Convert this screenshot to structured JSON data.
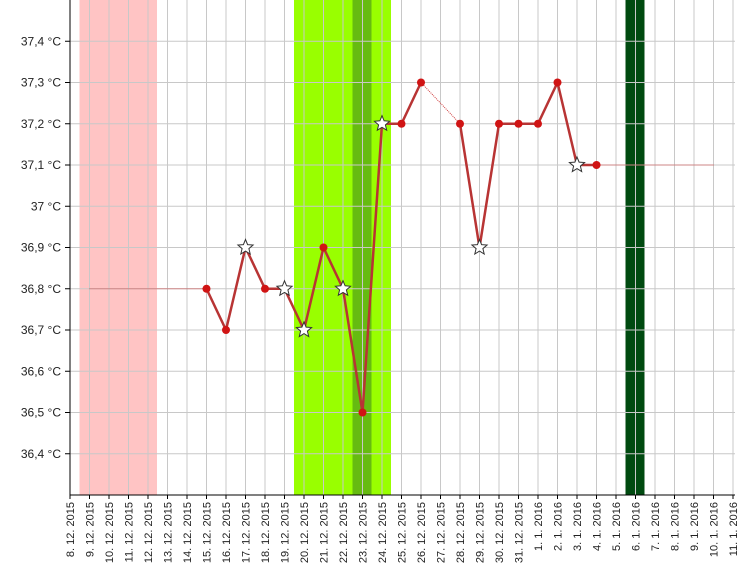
{
  "chart_data": {
    "type": "line",
    "categories": [
      "8. 12. 2015",
      "9. 12. 2015",
      "10. 12. 2015",
      "11. 12. 2015",
      "12. 12. 2015",
      "13. 12. 2015",
      "14. 12. 2015",
      "15. 12. 2015",
      "16. 12. 2015",
      "17. 12. 2015",
      "18. 12. 2015",
      "19. 12. 2015",
      "20. 12. 2015",
      "21. 12. 2015",
      "22. 12. 2015",
      "23. 12. 2015",
      "24. 12. 2015",
      "25. 12. 2015",
      "26. 12. 2015",
      "27. 12. 2015",
      "28. 12. 2015",
      "29. 12. 2015",
      "30. 12. 2015",
      "31. 12. 2015",
      "1. 1. 2016",
      "2. 1. 2016",
      "3. 1. 2016",
      "4. 1. 2016",
      "5. 1. 2016",
      "6. 1. 2016",
      "7. 1. 2016",
      "8. 1. 2016",
      "9. 1. 2016",
      "10. 1. 2016",
      "11. 1. 2016"
    ],
    "series": [
      {
        "color": "#b83434",
        "marker_color": "#d01414",
        "style": "solid",
        "values": [
          null,
          null,
          null,
          null,
          null,
          null,
          null,
          36.8,
          36.7,
          36.9,
          36.8,
          36.8,
          36.7,
          36.9,
          36.8,
          36.5,
          37.2,
          37.2,
          37.3,
          null,
          37.2,
          36.9,
          37.2,
          37.2,
          37.2,
          37.3,
          37.1,
          37.1,
          null,
          null,
          null,
          null,
          null,
          null,
          null
        ],
        "markers": [
          null,
          null,
          null,
          null,
          null,
          null,
          null,
          "dot",
          "dot",
          "star",
          "dot",
          "star",
          "star",
          "dot",
          "star",
          "dot",
          "star",
          "dot",
          "dot",
          null,
          "dot",
          "star",
          "dot",
          "dot",
          "dot",
          "dot",
          "star",
          "dot",
          null,
          null,
          null,
          null,
          null,
          null,
          null
        ]
      },
      {
        "color": "#d04040",
        "style": "dotted",
        "values": [
          null,
          36.8,
          36.8,
          36.8,
          36.8,
          36.8,
          36.8,
          36.8,
          null,
          null,
          null,
          null,
          null,
          null,
          null,
          null,
          null,
          null,
          37.3,
          37.25,
          37.2,
          null,
          null,
          null,
          null,
          null,
          null,
          37.1,
          37.1,
          37.1,
          37.1,
          37.1,
          37.1,
          37.1,
          null
        ]
      }
    ],
    "bands": [
      {
        "from": "9. 12. 2015",
        "to": "12. 12. 2015",
        "color": "#ffc4c4"
      },
      {
        "from": "20. 12. 2015",
        "to": "24. 12. 2015",
        "color": "#99ff00"
      },
      {
        "from": "23. 12. 2015",
        "to": "23. 12. 2015",
        "color": "#66bb11"
      },
      {
        "from": "6. 1. 2016",
        "to": "6. 1. 2016",
        "color": "#004a10"
      }
    ],
    "ylim": [
      36.3,
      37.5
    ],
    "yticks": [
      {
        "value": 36.4,
        "label": "36,4 °C"
      },
      {
        "value": 36.5,
        "label": "36,5 °C"
      },
      {
        "value": 36.6,
        "label": "36,6 °C"
      },
      {
        "value": 36.7,
        "label": "36,7 °C"
      },
      {
        "value": 36.8,
        "label": "36,8 °C"
      },
      {
        "value": 36.9,
        "label": "36,9 °C"
      },
      {
        "value": 37,
        "label": "37 °C"
      },
      {
        "value": 37.1,
        "label": "37,1 °C"
      },
      {
        "value": 37.2,
        "label": "37,2 °C"
      },
      {
        "value": 37.3,
        "label": "37,3 °C"
      },
      {
        "value": 37.4,
        "label": "37,4 °C"
      }
    ],
    "grid": true
  }
}
